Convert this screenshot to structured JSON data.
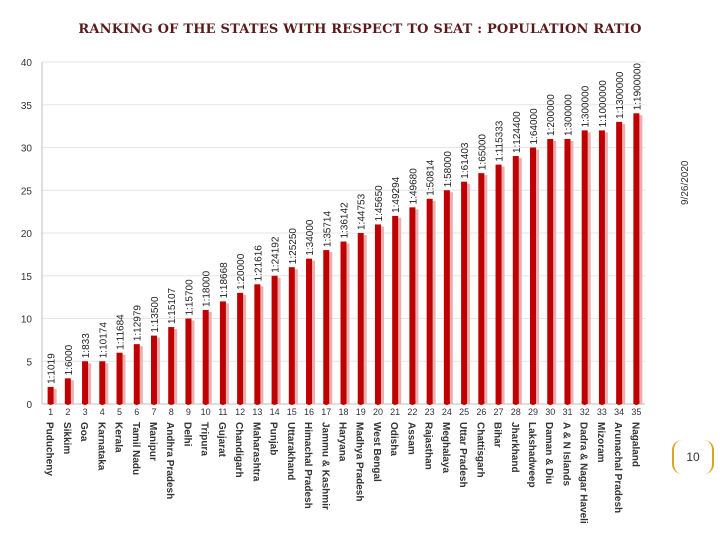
{
  "title": "RANKING OF THE STATES WITH RESPECT TO SEAT : POPULATION RATIO",
  "date": "9/26/2020",
  "page_number": "10",
  "colors": {
    "bar": "#c00000",
    "bar_shadow": "#e8b0b0",
    "rank_marker": "#c00000",
    "grid": "#e6e6e6",
    "title": "#5a1a1a"
  },
  "chart_data": {
    "type": "bar",
    "title": "RANKING OF THE STATES WITH RESPECT TO SEAT : POPULATION RATIO",
    "xlabel": "",
    "ylabel": "",
    "ylim": [
      0,
      40
    ],
    "yticks": [
      0,
      5,
      10,
      15,
      20,
      25,
      30,
      35,
      40
    ],
    "grid": true,
    "legend": "none",
    "categories": [
      "Puducheny",
      "Sikkim",
      "Goa",
      "Karnataka",
      "Kerala",
      "Tamil Nadu",
      "Manipur",
      "Andhra Pradesh",
      "Delhi",
      "Tripura",
      "Gujarat",
      "Chandigarh",
      "Maharashtra",
      "Punjab",
      "Uttarakhand",
      "Himachal Pradesh",
      "Jammu & Kashmir",
      "Haryana",
      "Madhya Pradesh",
      "West Bengal",
      "Odisha",
      "Assam",
      "Rajasthan",
      "Meghalaya",
      "Uttar Pradesh",
      "Chattisgarh",
      "Bihar",
      "Jharkhand",
      "Lakshadweep",
      "Daman & Diu",
      "A & N Islands",
      "Dadra & Nagar Haveli",
      "Mizoram",
      "Arunachal Pradesh",
      "Nagaland"
    ],
    "ranks": [
      "1",
      "2",
      "3",
      "4",
      "5",
      "6",
      "7",
      "8",
      "9",
      "10",
      "11",
      "12",
      "13",
      "14",
      "15",
      "16",
      "17",
      "18",
      "19",
      "20",
      "21",
      "22",
      "23",
      "24",
      "25",
      "26",
      "27",
      "28",
      "29",
      "30",
      "31",
      "32",
      "33",
      "34",
      "35"
    ],
    "values": [
      2,
      3,
      5,
      5,
      6,
      7,
      8,
      9,
      10,
      11,
      12,
      13,
      14,
      15,
      16,
      17,
      18,
      19,
      20,
      21,
      22,
      23,
      24,
      25,
      26,
      27,
      28,
      29,
      30,
      31,
      31,
      32,
      32,
      33,
      34
    ],
    "data_labels": [
      "1:1019",
      "1:6000",
      "1:833",
      "1:10174",
      "1:11684",
      "1:12979",
      "1:13500",
      "1:15107",
      "1:15700",
      "1:18000",
      "1:18668",
      "1:20000",
      "1:21616",
      "1:24192",
      "1:25250",
      "1:34000",
      "1:35714",
      "1:36142",
      "1:44753",
      "1:45650",
      "1:49294",
      "1:49680",
      "1:50814",
      "1:58000",
      "1:61403",
      "1:65000",
      "1:115333",
      "1:124400",
      "1:64000",
      "1:200000",
      "1:300000",
      "1:300000",
      "1:1000000",
      "1:1300000",
      "1:1900000"
    ]
  }
}
